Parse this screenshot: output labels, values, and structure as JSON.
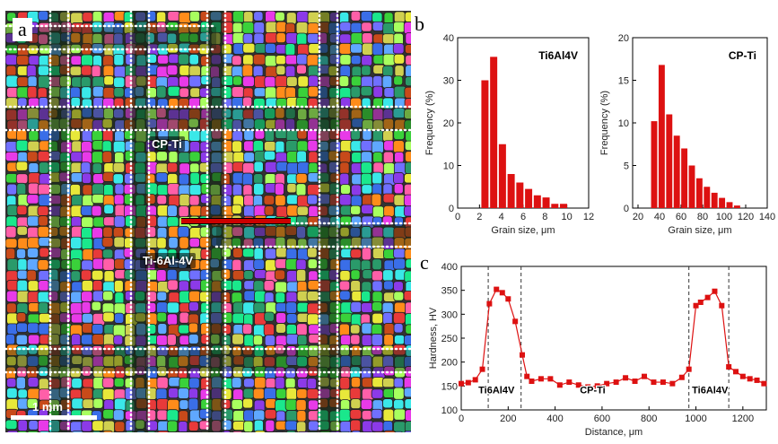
{
  "panels": {
    "a": {
      "letter": "a",
      "label_cp": "CP-Ti",
      "label_ti": "Ti-6Al-4V",
      "scale": "1 mm"
    },
    "b": {
      "letter": "b"
    },
    "c": {
      "letter": "c"
    }
  },
  "chart_data": [
    {
      "type": "bar",
      "panel": "b-left",
      "annotation": "Ti6Al4V",
      "xlabel": "Grain size, μm",
      "ylabel": "Frequency (%)",
      "xlim": [
        0,
        12
      ],
      "ylim": [
        0,
        40
      ],
      "xticks": [
        0,
        2,
        4,
        6,
        8,
        10,
        12
      ],
      "yticks": [
        0,
        10,
        20,
        30,
        40
      ],
      "x": [
        2.5,
        3.3,
        4.1,
        4.9,
        5.7,
        6.5,
        7.3,
        8.1,
        8.9,
        9.7
      ],
      "values": [
        30,
        35.5,
        15,
        8,
        6,
        4.5,
        3,
        2.5,
        1,
        1
      ],
      "color": "#dd1111"
    },
    {
      "type": "bar",
      "panel": "b-right",
      "annotation": "CP-Ti",
      "xlabel": "Grain size, μm",
      "ylabel": "Frequency (%)",
      "xlim": [
        15,
        140
      ],
      "ylim": [
        0,
        20
      ],
      "xticks": [
        20,
        40,
        60,
        80,
        100,
        120,
        140
      ],
      "yticks": [
        0,
        5,
        10,
        15,
        20
      ],
      "x": [
        35,
        42,
        49,
        56,
        63,
        70,
        77,
        84,
        91,
        98,
        105,
        112
      ],
      "values": [
        10.2,
        16.8,
        11,
        8.5,
        7,
        5,
        3.5,
        2.5,
        1.8,
        1.2,
        0.7,
        0.3
      ],
      "color": "#dd1111"
    },
    {
      "type": "line",
      "panel": "c",
      "xlabel": "Distance, μm",
      "ylabel": "Hardness, HV",
      "xlim": [
        0,
        1300
      ],
      "ylim": [
        100,
        400
      ],
      "xticks": [
        0,
        200,
        400,
        600,
        800,
        1000,
        1200
      ],
      "yticks": [
        100,
        150,
        200,
        250,
        300,
        350,
        400
      ],
      "x": [
        0,
        30,
        60,
        90,
        120,
        150,
        175,
        200,
        230,
        260,
        280,
        300,
        340,
        380,
        420,
        460,
        500,
        540,
        580,
        620,
        660,
        700,
        740,
        780,
        820,
        860,
        900,
        940,
        970,
        1000,
        1020,
        1050,
        1080,
        1110,
        1140,
        1170,
        1200,
        1230,
        1260,
        1290
      ],
      "values": [
        155,
        157,
        163,
        185,
        322,
        352,
        345,
        332,
        285,
        215,
        170,
        160,
        165,
        165,
        152,
        158,
        152,
        148,
        150,
        155,
        158,
        167,
        160,
        170,
        158,
        158,
        155,
        168,
        185,
        318,
        325,
        335,
        348,
        318,
        190,
        180,
        170,
        165,
        162,
        155
      ],
      "vlines": [
        115,
        255,
        970,
        1140
      ],
      "annotations": [
        "Ti6Al4V",
        "CP-Ti",
        "Ti6Al4V"
      ],
      "color": "#dd1111"
    }
  ]
}
